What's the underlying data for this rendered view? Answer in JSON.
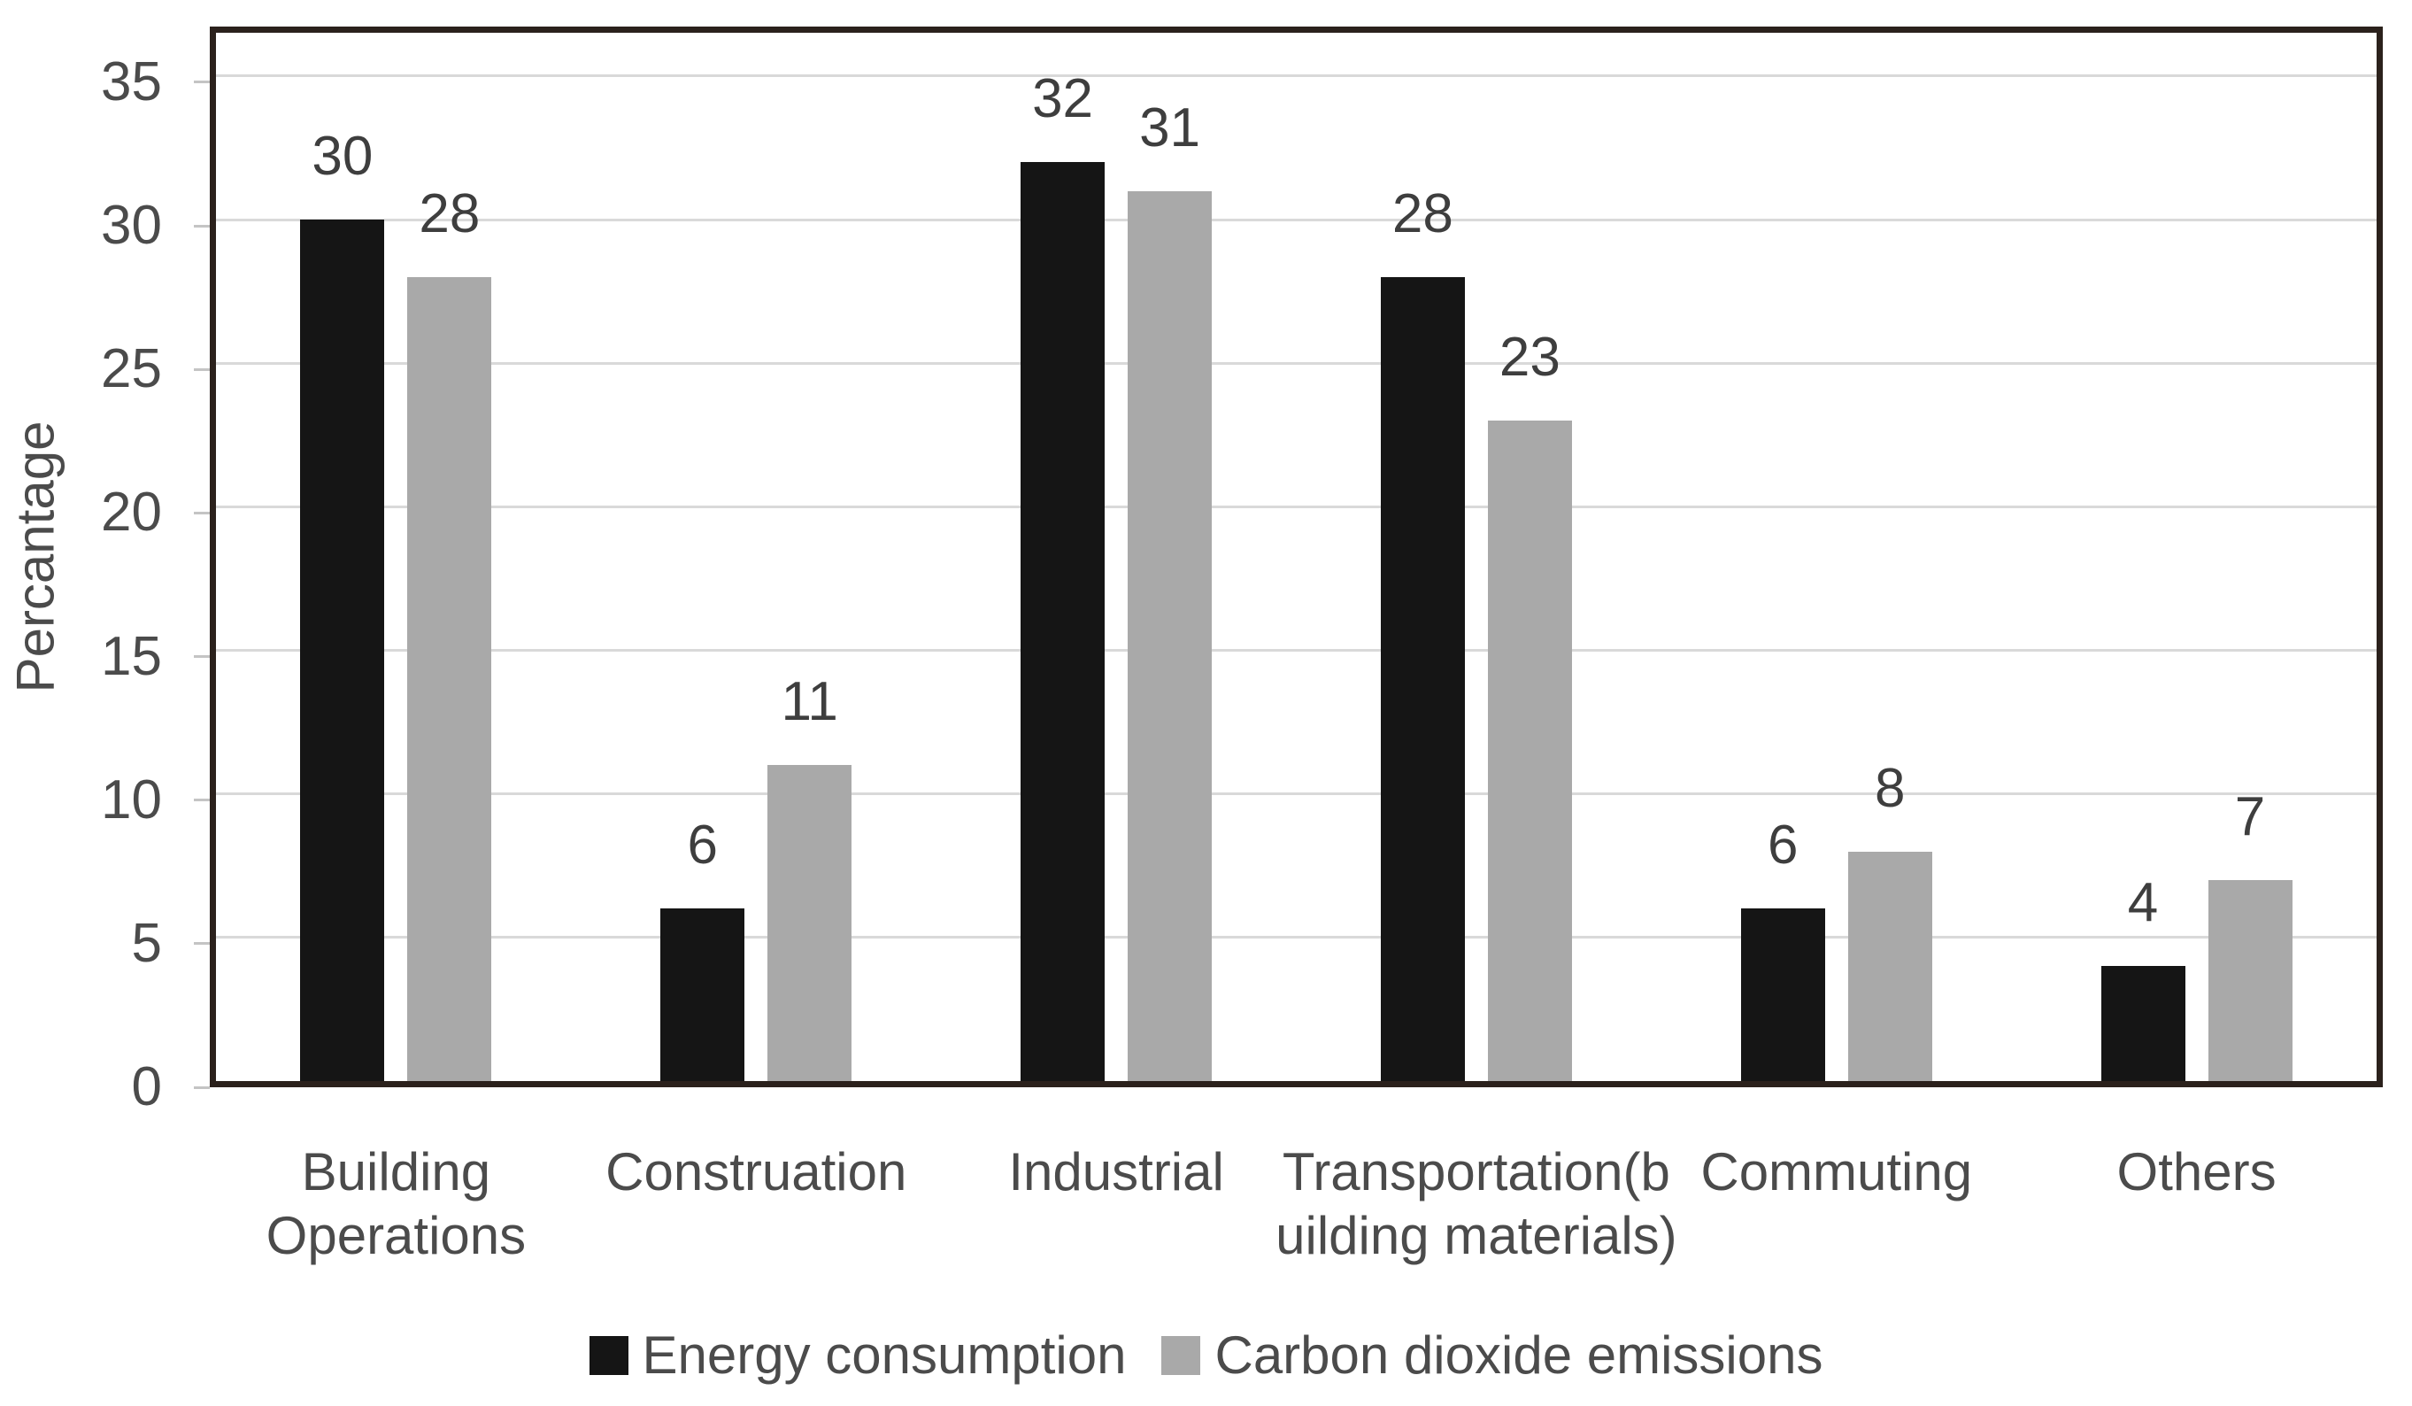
{
  "chart_data": {
    "type": "bar",
    "title": "",
    "ylabel": "Percantage",
    "xlabel": "",
    "categories": [
      "Building\nOperations",
      "Construation",
      "Industrial",
      "Transportation(b\nuilding materials)",
      "Commuting",
      "Others"
    ],
    "series": [
      {
        "name": "Energy consumption",
        "color": "#151515",
        "values": [
          30,
          6,
          32,
          28,
          6,
          4
        ]
      },
      {
        "name": "Carbon dioxide emissions",
        "color": "#a9a9a9",
        "values": [
          28,
          11,
          31,
          23,
          8,
          7
        ]
      }
    ],
    "data_labels": [
      [
        "30",
        "28"
      ],
      [
        "6",
        "11"
      ],
      [
        "32",
        "31"
      ],
      [
        "28",
        "23"
      ],
      [
        "6",
        "8"
      ],
      [
        "4",
        "7"
      ]
    ],
    "yticks": [
      "0",
      "5",
      "10",
      "15",
      "20",
      "25",
      "30",
      "35"
    ],
    "ylim": [
      0,
      35
    ],
    "grid": true,
    "legend_position": "bottom"
  }
}
